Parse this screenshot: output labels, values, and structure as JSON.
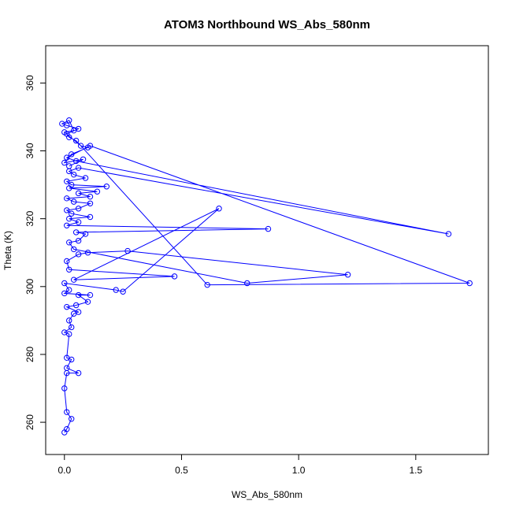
{
  "chart_data": {
    "type": "line",
    "title": "ATOM3 Northbound WS_Abs_580nm",
    "xlabel": "WS_Abs_580nm",
    "ylabel": "Theta (K)",
    "xlim": [
      -0.08,
      1.81
    ],
    "ylim": [
      250.5,
      371.0
    ],
    "x_ticks": [
      0.0,
      0.5,
      1.0,
      1.5
    ],
    "x_tick_labels": [
      "0.0",
      "0.5",
      "1.0",
      "1.5"
    ],
    "y_ticks": [
      260,
      280,
      300,
      320,
      340,
      360
    ],
    "y_tick_labels": [
      "260",
      "280",
      "300",
      "320",
      "340",
      "360"
    ],
    "series": [
      {
        "color": "#0000ff",
        "marker": "open-circle",
        "points": [
          [
            0.0,
            257.0
          ],
          [
            0.01,
            258.0
          ],
          [
            0.03,
            261.0
          ],
          [
            0.01,
            263.0
          ],
          [
            0.0,
            270.0
          ],
          [
            0.01,
            274.5
          ],
          [
            0.06,
            274.5
          ],
          [
            0.01,
            276.0
          ],
          [
            0.03,
            278.5
          ],
          [
            0.01,
            279.0
          ],
          [
            0.02,
            286.0
          ],
          [
            0.0,
            286.5
          ],
          [
            0.03,
            288.0
          ],
          [
            0.02,
            290.0
          ],
          [
            0.04,
            292.0
          ],
          [
            0.06,
            292.5
          ],
          [
            0.01,
            294.0
          ],
          [
            0.05,
            294.5
          ],
          [
            0.1,
            295.5
          ],
          [
            0.06,
            297.5
          ],
          [
            0.11,
            297.5
          ],
          [
            0.0,
            298.0
          ],
          [
            0.02,
            299.0
          ],
          [
            0.0,
            301.0
          ],
          [
            0.22,
            299.0
          ],
          [
            0.25,
            298.5
          ],
          [
            0.66,
            323.0
          ],
          [
            0.04,
            302.0
          ],
          [
            0.47,
            303.0
          ],
          [
            0.02,
            305.0
          ],
          [
            0.01,
            307.5
          ],
          [
            0.06,
            309.5
          ],
          [
            0.1,
            310.0
          ],
          [
            0.27,
            310.5
          ],
          [
            1.21,
            303.5
          ],
          [
            0.78,
            301.0
          ],
          [
            0.04,
            311.0
          ],
          [
            0.02,
            313.0
          ],
          [
            0.06,
            313.5
          ],
          [
            0.09,
            315.5
          ],
          [
            0.05,
            316.0
          ],
          [
            0.87,
            317.0
          ],
          [
            0.01,
            318.0
          ],
          [
            0.06,
            319.0
          ],
          [
            0.02,
            320.0
          ],
          [
            0.11,
            320.5
          ],
          [
            0.03,
            321.5
          ],
          [
            0.01,
            322.5
          ],
          [
            0.06,
            323.0
          ],
          [
            0.11,
            324.5
          ],
          [
            0.04,
            325.0
          ],
          [
            0.01,
            326.0
          ],
          [
            0.11,
            326.5
          ],
          [
            0.06,
            327.5
          ],
          [
            0.14,
            328.0
          ],
          [
            0.02,
            329.0
          ],
          [
            0.18,
            329.5
          ],
          [
            0.03,
            330.0
          ],
          [
            0.01,
            331.0
          ],
          [
            0.09,
            332.0
          ],
          [
            0.04,
            333.0
          ],
          [
            0.02,
            334.0
          ],
          [
            0.06,
            335.0
          ],
          [
            1.64,
            315.5
          ],
          [
            0.05,
            337.0
          ],
          [
            0.01,
            338.0
          ],
          [
            0.11,
            341.5
          ],
          [
            1.73,
            301.0
          ],
          [
            0.61,
            300.5
          ],
          [
            0.05,
            343.0
          ],
          [
            0.02,
            344.0
          ],
          [
            0.01,
            345.0
          ],
          [
            0.06,
            346.5
          ],
          [
            0.01,
            347.5
          ],
          [
            -0.01,
            348.0
          ],
          [
            0.02,
            349.0
          ],
          [
            0.04,
            346.0
          ],
          [
            0.0,
            345.5
          ],
          [
            0.07,
            341.5
          ],
          [
            0.1,
            341.0
          ],
          [
            0.03,
            339.0
          ],
          [
            0.0,
            336.5
          ],
          [
            0.08,
            337.5
          ],
          [
            0.02,
            335.5
          ]
        ]
      }
    ]
  }
}
